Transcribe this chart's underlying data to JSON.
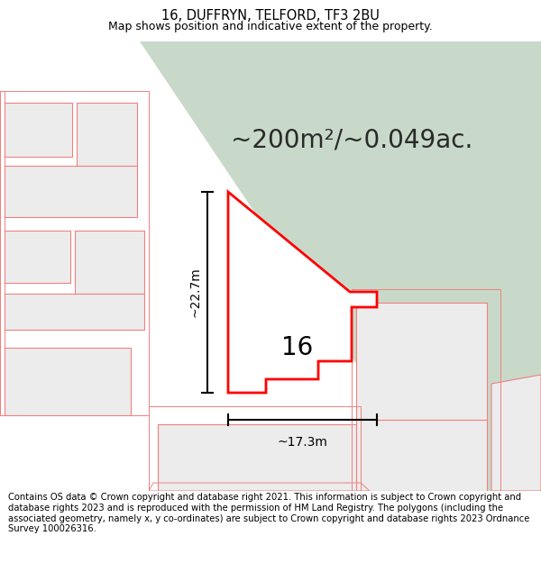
{
  "title": "16, DUFFRYN, TELFORD, TF3 2BU",
  "subtitle": "Map shows position and indicative extent of the property.",
  "area_text": "~200m²/~0.049ac.",
  "label_16": "16",
  "dim_height": "~22.7m",
  "dim_width": "~17.3m",
  "footer": "Contains OS data © Crown copyright and database right 2021. This information is subject to Crown copyright and database rights 2023 and is reproduced with the permission of HM Land Registry. The polygons (including the associated geometry, namely x, y co-ordinates) are subject to Crown copyright and database rights 2023 Ordnance Survey 100026316.",
  "bg_color": "#ffffff",
  "map_bg": "#f7f7f7",
  "green_band_color": "#c9d9c9",
  "plot_outline_color": "#ff0000",
  "other_outline_color": "#f08080",
  "other_fill_color": "#ececec",
  "title_fontsize": 10.5,
  "subtitle_fontsize": 9,
  "area_fontsize": 20,
  "footer_fontsize": 7.2,
  "label_fontsize": 20,
  "dim_fontsize": 10
}
